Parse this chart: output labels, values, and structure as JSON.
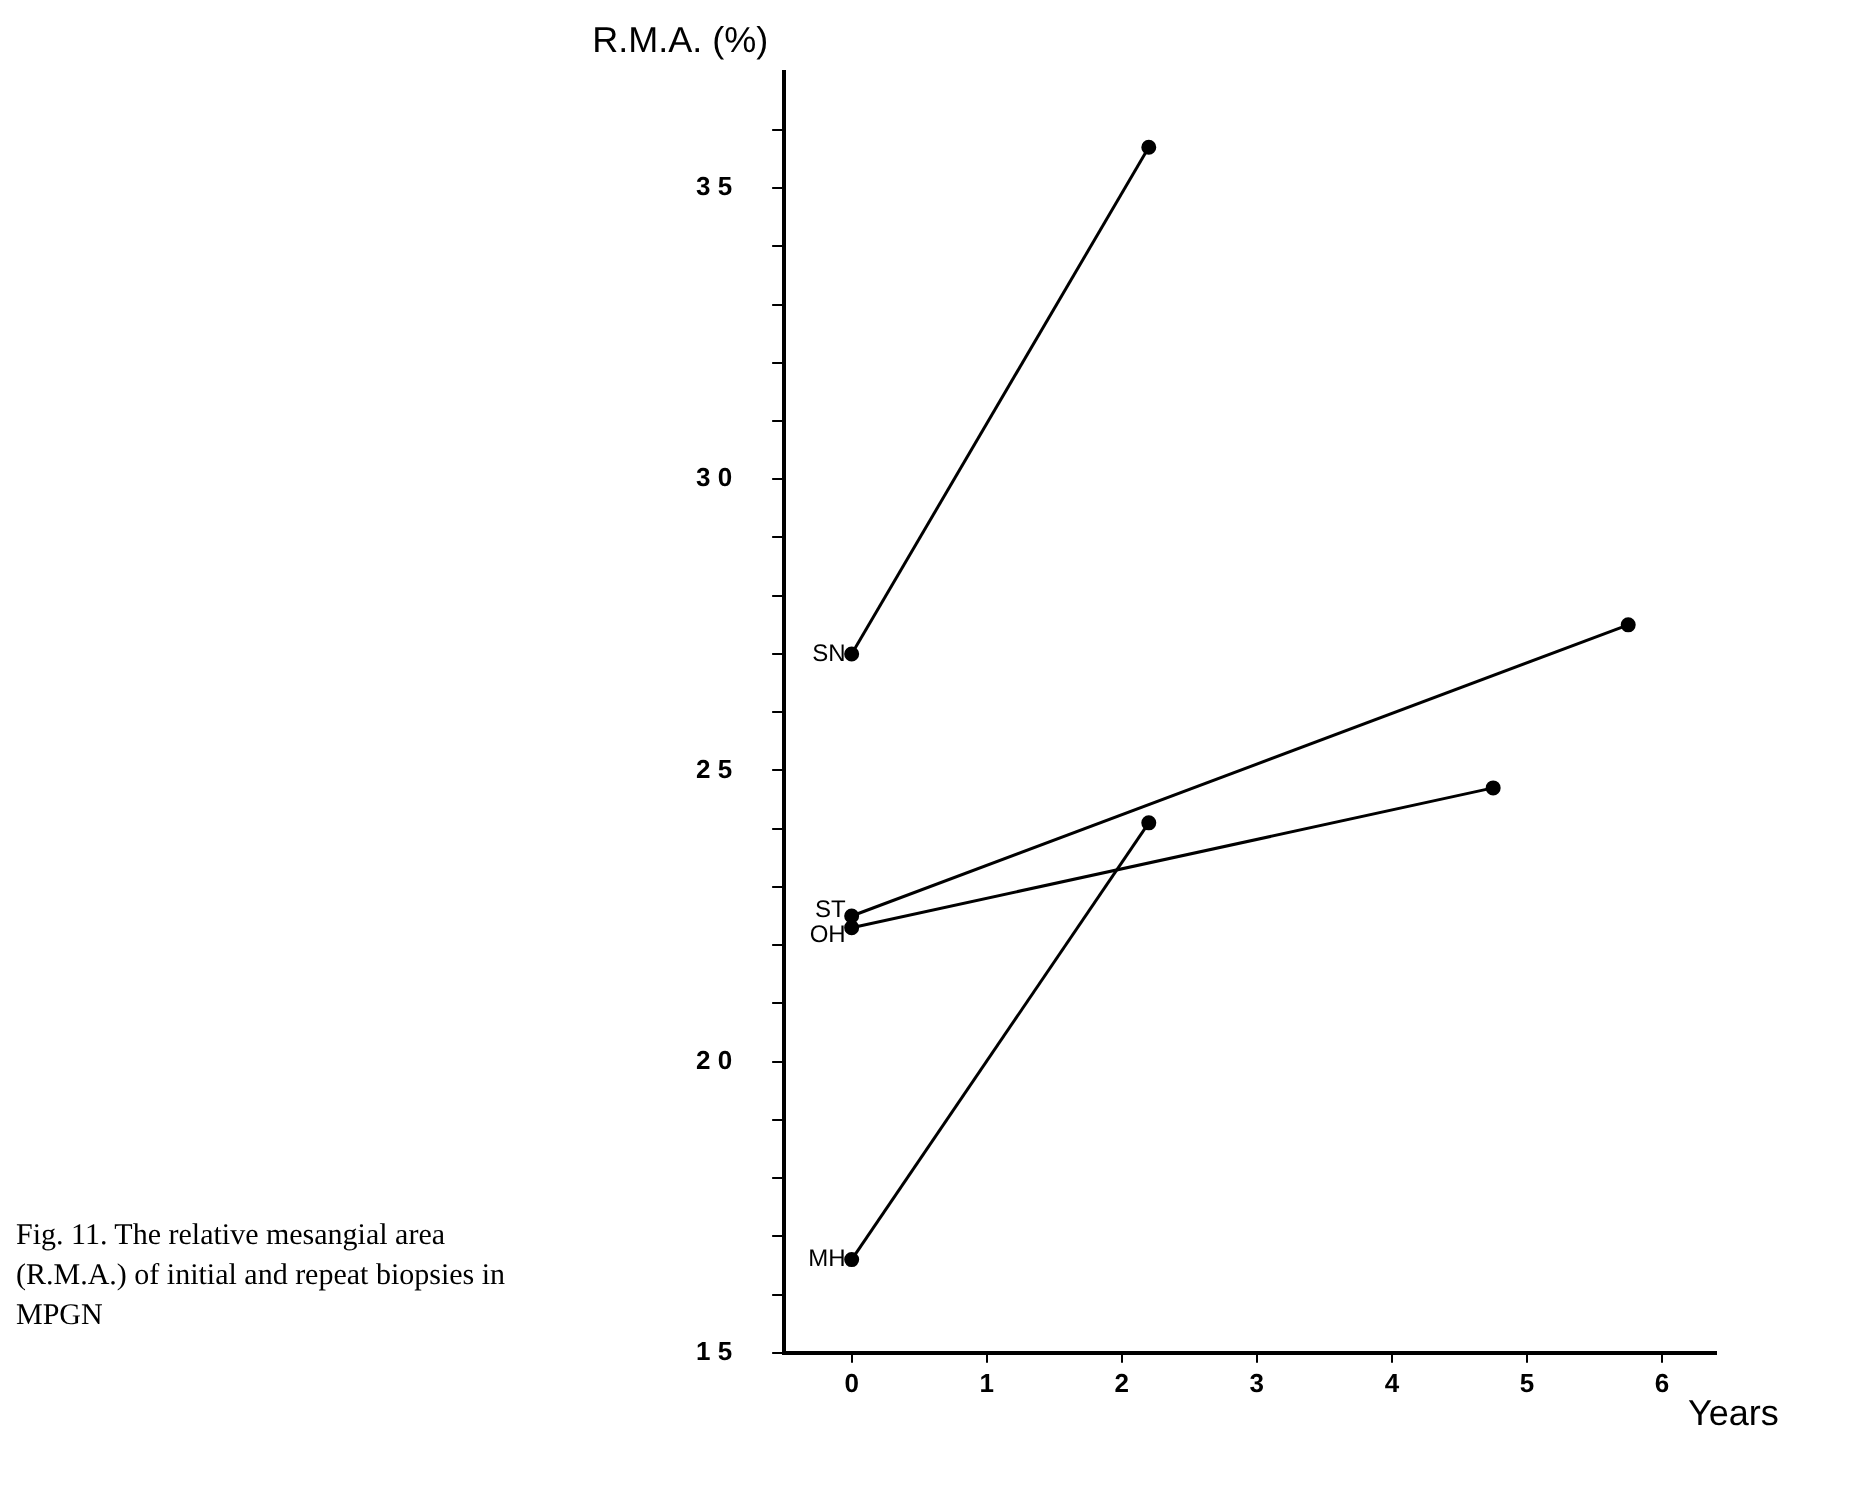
{
  "chart_data": {
    "type": "line",
    "xlabel": "Years",
    "ylabel": "R.M.A. (%)",
    "annotations": [
      "Fig. 11. The relative mesangial area (R.M.A.) of initial and repeat biopsies in MPGN"
    ],
    "xlim": [
      -0.5,
      6.4
    ],
    "xticks": [
      0,
      1,
      2,
      3,
      4,
      5,
      6
    ],
    "ylim": [
      15,
      37
    ],
    "yticks": [
      15,
      {
        "value": 16,
        "label": null
      },
      {
        "value": 17,
        "label": null
      },
      {
        "value": 18,
        "label": null
      },
      {
        "value": 19,
        "label": null
      },
      20,
      {
        "value": 21,
        "label": null
      },
      {
        "value": 22,
        "label": null
      },
      {
        "value": 23,
        "label": null
      },
      {
        "value": 24,
        "label": null
      },
      25,
      {
        "value": 26,
        "label": null
      },
      {
        "value": 27,
        "label": null
      },
      {
        "value": 28,
        "label": null
      },
      {
        "value": 29,
        "label": null
      },
      30,
      {
        "value": 31,
        "label": null
      },
      {
        "value": 32,
        "label": null
      },
      {
        "value": 33,
        "label": null
      },
      {
        "value": 34,
        "label": null
      },
      35,
      {
        "value": 36,
        "label": null
      }
    ],
    "grid": false,
    "legend": false,
    "marker": "circle",
    "line_style": "solid",
    "series": [
      {
        "name": "SN",
        "color": "#000000",
        "x": [
          0,
          2.2
        ],
        "values": [
          27.0,
          35.7
        ]
      },
      {
        "name": "ST",
        "color": "#000000",
        "x": [
          0,
          5.75
        ],
        "values": [
          22.5,
          27.5
        ]
      },
      {
        "name": "OH",
        "color": "#000000",
        "x": [
          0,
          4.75
        ],
        "values": [
          22.3,
          24.7
        ]
      },
      {
        "name": "MH",
        "color": "#000000",
        "x": [
          0,
          2.2
        ],
        "values": [
          16.6,
          24.1
        ]
      }
    ]
  }
}
